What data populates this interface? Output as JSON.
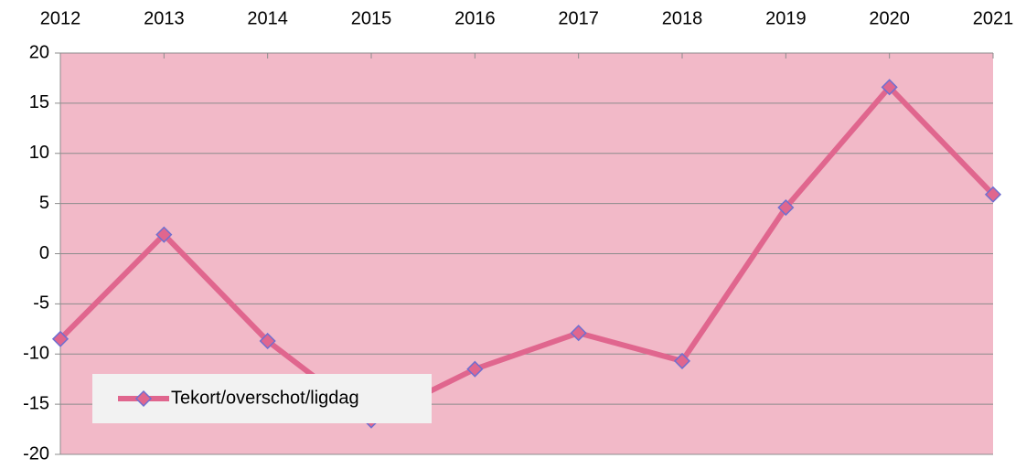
{
  "chart_data": {
    "type": "line",
    "categories": [
      "2012",
      "2013",
      "2014",
      "2015",
      "2016",
      "2017",
      "2018",
      "2019",
      "2020",
      "2021"
    ],
    "series": [
      {
        "name": "Tekort/overschot/ligdag",
        "color": "#e0668e",
        "marker_edge": "#6f6fd0",
        "values": [
          -8.5,
          1.9,
          -8.7,
          -16.6,
          -11.5,
          -7.9,
          -10.7,
          4.6,
          16.6,
          5.9
        ]
      }
    ],
    "ylim": [
      -20,
      20
    ],
    "yticks": [
      -20,
      -15,
      -10,
      -5,
      0,
      5,
      10,
      15,
      20
    ],
    "grid": true,
    "legend": "lower left",
    "plot_background": "#f2b9c8",
    "x_axis_position": "top"
  }
}
